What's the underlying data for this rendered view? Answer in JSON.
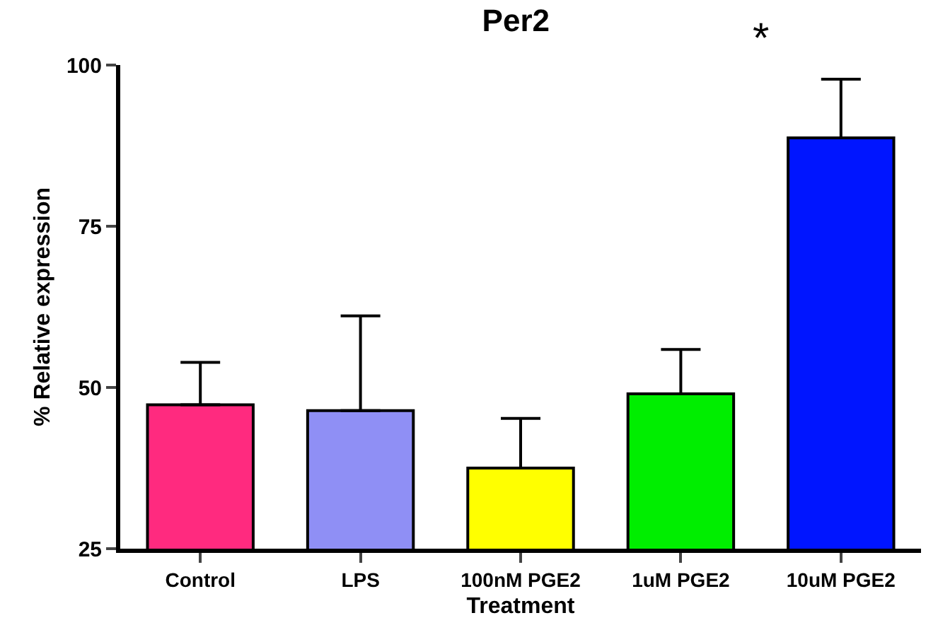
{
  "chart_data": {
    "type": "bar",
    "title": "Per2",
    "xlabel": "Treatment",
    "ylabel": "% Relative expression",
    "categories": [
      "Control",
      "LPS",
      "100nM PGE2",
      "1uM PGE2",
      "10uM PGE2"
    ],
    "values": [
      47.3,
      46.4,
      37.5,
      49.0,
      88.7
    ],
    "errors": [
      [
        47.3,
        53.9
      ],
      [
        46.4,
        61.1
      ],
      [
        37.5,
        45.2
      ],
      [
        49.0,
        55.9
      ],
      [
        88.7,
        97.8
      ]
    ],
    "colors": [
      "#ff2a7f",
      "#8f8ff5",
      "#ffff00",
      "#00ee00",
      "#0015ff"
    ],
    "ylim": [
      25,
      100
    ],
    "yticks": [
      25,
      50,
      75,
      100
    ],
    "legend": false,
    "annotations": [
      "*"
    ]
  }
}
